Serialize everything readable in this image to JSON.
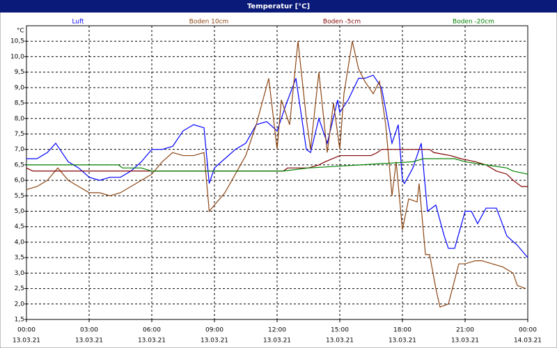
{
  "chart_data": {
    "type": "line",
    "title": "Temperatur [°C]",
    "y_unit": "°C",
    "xlim": [
      0,
      24
    ],
    "xticks": [
      {
        "value": 0,
        "label": "00:00"
      },
      {
        "value": 3,
        "label": "03:00"
      },
      {
        "value": 6,
        "label": "06:00"
      },
      {
        "value": 9,
        "label": "09:00"
      },
      {
        "value": 12,
        "label": "12:00"
      },
      {
        "value": 15,
        "label": "15:00"
      },
      {
        "value": 18,
        "label": "18:00"
      },
      {
        "value": 21,
        "label": "21:00"
      },
      {
        "value": 24,
        "label": "00:00"
      }
    ],
    "xtick_dates": [
      "13.03.21",
      "13.03.21",
      "13.03.21",
      "13.03.21",
      "13.03.21",
      "13.03.21",
      "13.03.21",
      "13.03.21",
      "14.03.21"
    ],
    "ylim": [
      1.5,
      11
    ],
    "yticks": [
      {
        "value": 1.5,
        "label": "1,5"
      },
      {
        "value": 2,
        "label": "2,0"
      },
      {
        "value": 2.5,
        "label": "2,5"
      },
      {
        "value": 3,
        "label": "3,0"
      },
      {
        "value": 3.5,
        "label": "3,5"
      },
      {
        "value": 4,
        "label": "4,0"
      },
      {
        "value": 4.5,
        "label": "4,5"
      },
      {
        "value": 5,
        "label": "5,0"
      },
      {
        "value": 5.5,
        "label": "5,5"
      },
      {
        "value": 6,
        "label": "6,0"
      },
      {
        "value": 6.5,
        "label": "6,5"
      },
      {
        "value": 7,
        "label": "7,0"
      },
      {
        "value": 7.5,
        "label": "7,5"
      },
      {
        "value": 8,
        "label": "8,0"
      },
      {
        "value": 8.5,
        "label": "8,5"
      },
      {
        "value": 9,
        "label": "9,0"
      },
      {
        "value": 9.5,
        "label": "9,5"
      },
      {
        "value": 10,
        "label": "10,0"
      },
      {
        "value": 10.5,
        "label": "10,5"
      }
    ],
    "grid": true,
    "series": [
      {
        "name": "Luft",
        "color": "#0000ff",
        "x": [
          0,
          0.5,
          1,
          1.4,
          2,
          2.5,
          3,
          3.5,
          4,
          4.5,
          5,
          5.5,
          6,
          6.5,
          7,
          7.5,
          8,
          8.5,
          8.75,
          9,
          9.5,
          10,
          10.5,
          11,
          11.5,
          12,
          12.4,
          12.9,
          13.4,
          13.6,
          14,
          14.4,
          14.9,
          15,
          15.4,
          15.9,
          16.2,
          16.6,
          17,
          17.5,
          17.8,
          18,
          18.1,
          18.5,
          18.9,
          19.2,
          19.6,
          20,
          20.2,
          20.5,
          21,
          21.3,
          21.6,
          22,
          22.5,
          23,
          23.5,
          24
        ],
        "values": [
          6.7,
          6.7,
          6.9,
          7.2,
          6.6,
          6.4,
          6.1,
          6.0,
          6.1,
          6.1,
          6.3,
          6.6,
          7.0,
          7.0,
          7.1,
          7.6,
          7.8,
          7.7,
          5.9,
          6.4,
          6.7,
          7.0,
          7.2,
          7.8,
          7.9,
          7.6,
          8.4,
          9.3,
          7.0,
          6.9,
          8.0,
          7.2,
          8.6,
          8.2,
          8.6,
          9.3,
          9.3,
          9.4,
          9.0,
          7.2,
          7.8,
          6.0,
          5.9,
          6.4,
          7.2,
          5.0,
          5.2,
          4.2,
          3.8,
          3.8,
          5.0,
          5.0,
          4.6,
          5.1,
          5.1,
          4.2,
          3.9,
          3.5
        ]
      },
      {
        "name": "Boden 10cm",
        "color": "#8b4513",
        "x": [
          0,
          0.5,
          1,
          1.5,
          2,
          2.5,
          3,
          3.5,
          4,
          4.5,
          5,
          5.5,
          6,
          6.5,
          7,
          7.5,
          8,
          8.5,
          8.75,
          9.5,
          10,
          10.5,
          11,
          11.6,
          12,
          12.2,
          12.6,
          13,
          13.4,
          13.6,
          14,
          14.4,
          14.7,
          15,
          15.2,
          15.6,
          15.9,
          16.2,
          16.6,
          16.9,
          17.2,
          17.5,
          17.7,
          18,
          18.3,
          18.7,
          18.8,
          19.1,
          19.3,
          19.6,
          19.8,
          20.2,
          20.7,
          21,
          21.5,
          21.8,
          22.3,
          22.8,
          23.3,
          23.5,
          23.9
        ],
        "values": [
          5.7,
          5.8,
          6.0,
          6.4,
          6.0,
          5.8,
          5.6,
          5.6,
          5.5,
          5.6,
          5.8,
          6.0,
          6.2,
          6.6,
          6.9,
          6.8,
          6.8,
          6.9,
          5.0,
          5.6,
          6.2,
          6.8,
          7.8,
          9.3,
          7.0,
          8.6,
          7.8,
          10.5,
          8.0,
          7.0,
          9.5,
          6.9,
          8.5,
          7.0,
          8.8,
          10.5,
          9.6,
          9.2,
          8.8,
          9.2,
          7.8,
          5.5,
          6.6,
          4.4,
          5.4,
          5.3,
          5.9,
          3.6,
          3.6,
          2.5,
          1.9,
          2.0,
          3.3,
          3.3,
          3.4,
          3.4,
          3.3,
          3.2,
          3.0,
          2.6,
          2.5
        ]
      },
      {
        "name": "Boden -5cm",
        "color": "#800000",
        "x": [
          0,
          0.3,
          12.3,
          12.5,
          13.5,
          14,
          14.3,
          15,
          16.5,
          16.8,
          17,
          19.3,
          19.5,
          20.3,
          20.8,
          21.5,
          22,
          22.5,
          23,
          23.3,
          23.5,
          23.7,
          24
        ],
        "values": [
          6.4,
          6.3,
          6.3,
          6.4,
          6.4,
          6.5,
          6.6,
          6.8,
          6.8,
          6.9,
          7.0,
          7.0,
          6.9,
          6.8,
          6.7,
          6.6,
          6.5,
          6.3,
          6.2,
          6.0,
          5.9,
          5.8,
          5.8
        ]
      },
      {
        "name": "Boden -20cm",
        "color": "#008000",
        "x": [
          0,
          4.4,
          4.6,
          5.5,
          6,
          12.3,
          13.5,
          16,
          18.5,
          19,
          20.5,
          21,
          22,
          23,
          23.3,
          24
        ],
        "values": [
          6.5,
          6.5,
          6.4,
          6.4,
          6.3,
          6.3,
          6.4,
          6.5,
          6.6,
          6.7,
          6.7,
          6.6,
          6.5,
          6.4,
          6.3,
          6.2
        ]
      }
    ]
  }
}
